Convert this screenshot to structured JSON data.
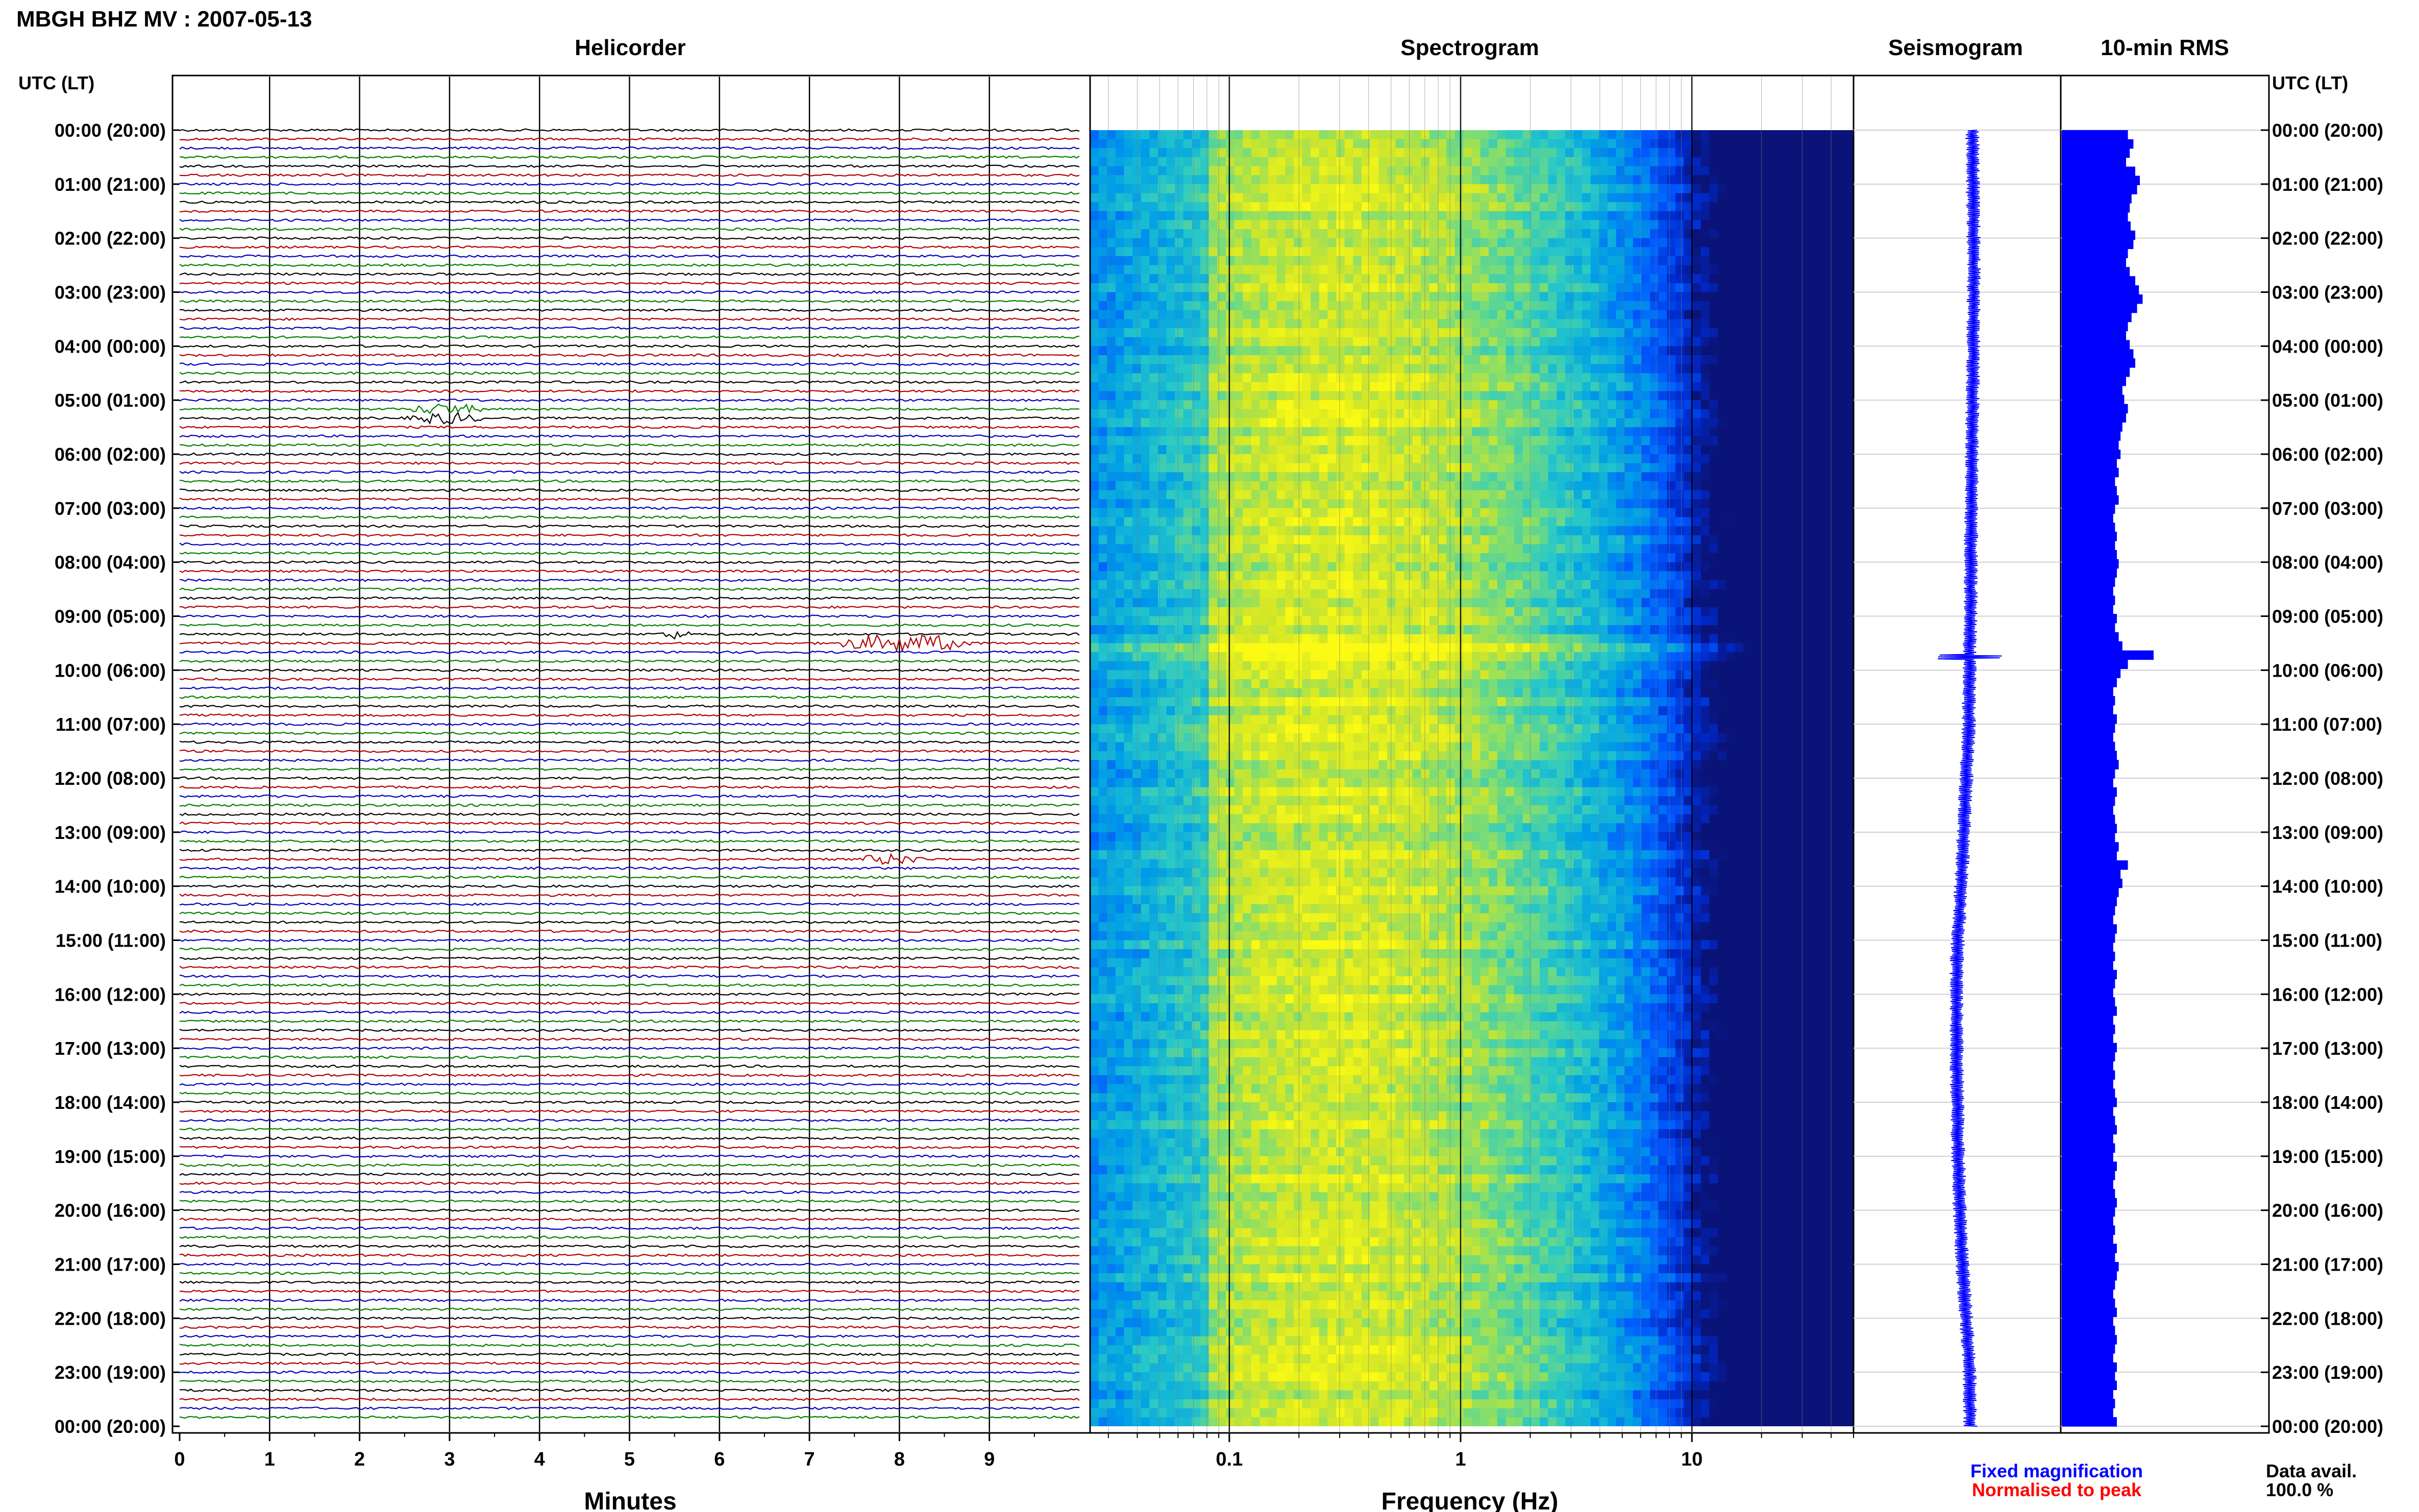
{
  "header": {
    "station": "MBGH BHZ MV",
    "separator": " : ",
    "date": "2007-05-13"
  },
  "panels": {
    "helicorder": "Helicorder",
    "spectrogram": "Spectrogram",
    "seismogram": "Seismogram",
    "rms": "10-min RMS"
  },
  "axis": {
    "time_label_left": "UTC (LT)",
    "time_label_right": "UTC (LT)",
    "minutes_label": "Minutes",
    "frequency_label": "Frequency (Hz)"
  },
  "legend": {
    "fixed": "Fixed magnification",
    "normalised": "Normalised to peak",
    "fixed_color": "#0000ff",
    "normalised_color": "#ff0000"
  },
  "data_avail": {
    "label": "Data avail.",
    "value": "100.0 %"
  },
  "colors": {
    "trace_cycle": [
      "#000000",
      "#b00000",
      "#0000c0",
      "#007f00"
    ]
  },
  "chart_data": [
    {
      "type": "line",
      "panel": "helicorder",
      "title": "Helicorder",
      "xlabel": "Minutes",
      "x_ticks": [
        "0",
        "1",
        "2",
        "3",
        "4",
        "5",
        "6",
        "7",
        "8",
        "9"
      ],
      "xlim": [
        0,
        10
      ],
      "y_ticks": [
        "00:00 (20:00)",
        "01:00 (21:00)",
        "02:00 (22:00)",
        "03:00 (23:00)",
        "04:00 (00:00)",
        "05:00 (01:00)",
        "06:00 (02:00)",
        "07:00 (03:00)",
        "08:00 (04:00)",
        "09:00 (05:00)",
        "10:00 (06:00)",
        "11:00 (07:00)",
        "12:00 (08:00)",
        "13:00 (09:00)",
        "14:00 (10:00)",
        "15:00 (11:00)",
        "16:00 (12:00)",
        "17:00 (13:00)",
        "18:00 (14:00)",
        "19:00 (15:00)",
        "20:00 (16:00)",
        "21:00 (17:00)",
        "22:00 (18:00)",
        "23:00 (19:00)",
        "00:00 (20:00)"
      ],
      "rows_per_hour": 6,
      "events": [
        {
          "hour": 5.25,
          "minute_start": 2.5,
          "minute_end": 3.4,
          "amplitude": 0.6,
          "color": "#b00000"
        },
        {
          "hour": 9.35,
          "minute_start": 5.3,
          "minute_end": 5.7,
          "amplitude": 0.45,
          "color": "#000000"
        },
        {
          "hour": 9.5,
          "minute_start": 7.2,
          "minute_end": 8.9,
          "amplitude": 1.0,
          "color": "#0000c0"
        },
        {
          "hour": 13.5,
          "minute_start": 7.5,
          "minute_end": 8.3,
          "amplitude": 0.55,
          "color": "#b00000"
        }
      ]
    },
    {
      "type": "heatmap",
      "panel": "spectrogram",
      "title": "Spectrogram",
      "xlabel": "Frequency (Hz)",
      "x_scale": "log",
      "xlim": [
        0.025,
        50
      ],
      "x_ticks": [
        "0.1",
        "1",
        "10"
      ],
      "x_tick_values": [
        0.1,
        1,
        10
      ],
      "colormap": "parula",
      "peak_frequency_hz": 0.3
    },
    {
      "type": "line",
      "panel": "seismogram",
      "title": "Seismogram",
      "offset_hours": [
        0,
        1,
        2,
        3,
        4,
        5,
        6,
        7,
        8,
        9,
        10,
        11,
        12,
        13,
        14,
        15,
        16,
        17,
        18,
        19,
        20,
        21,
        22,
        23,
        24
      ],
      "offset_values": [
        0.5,
        0.52,
        0.55,
        0.56,
        0.54,
        0.5,
        0.47,
        0.45,
        0.42,
        0.4,
        0.35,
        0.32,
        0.2,
        0.08,
        -0.05,
        -0.22,
        -0.3,
        -0.28,
        -0.25,
        -0.2,
        -0.12,
        0.0,
        0.2,
        0.35,
        0.4
      ],
      "spike_hour": 9.75
    },
    {
      "type": "bar",
      "panel": "10-min RMS",
      "title": "10-min RMS",
      "orientation": "horizontal",
      "bins_per_hour": 6,
      "values": [
        0.72,
        0.78,
        0.74,
        0.7,
        0.8,
        0.85,
        0.82,
        0.76,
        0.74,
        0.72,
        0.75,
        0.8,
        0.78,
        0.72,
        0.7,
        0.74,
        0.8,
        0.84,
        0.88,
        0.82,
        0.76,
        0.72,
        0.7,
        0.74,
        0.78,
        0.8,
        0.74,
        0.7,
        0.66,
        0.68,
        0.72,
        0.7,
        0.66,
        0.64,
        0.62,
        0.64,
        0.6,
        0.62,
        0.58,
        0.6,
        0.62,
        0.58,
        0.56,
        0.58,
        0.6,
        0.58,
        0.6,
        0.62,
        0.6,
        0.58,
        0.56,
        0.58,
        0.56,
        0.6,
        0.58,
        0.62,
        0.66,
        1.0,
        0.72,
        0.64,
        0.6,
        0.56,
        0.58,
        0.56,
        0.6,
        0.58,
        0.56,
        0.58,
        0.6,
        0.62,
        0.58,
        0.56,
        0.6,
        0.58,
        0.56,
        0.58,
        0.6,
        0.58,
        0.62,
        0.6,
        0.72,
        0.64,
        0.66,
        0.62,
        0.6,
        0.58,
        0.56,
        0.6,
        0.58,
        0.56,
        0.58,
        0.56,
        0.6,
        0.58,
        0.56,
        0.58,
        0.6,
        0.56,
        0.58,
        0.56,
        0.6,
        0.58,
        0.56,
        0.58,
        0.56,
        0.58,
        0.6,
        0.56,
        0.58,
        0.6,
        0.56,
        0.58,
        0.56,
        0.6,
        0.58,
        0.56,
        0.58,
        0.6,
        0.58,
        0.56,
        0.58,
        0.56,
        0.6,
        0.58,
        0.62,
        0.6,
        0.58,
        0.56,
        0.58,
        0.6,
        0.56,
        0.58,
        0.6,
        0.58,
        0.56,
        0.6,
        0.58,
        0.6,
        0.56,
        0.58,
        0.56,
        0.6
      ]
    }
  ]
}
